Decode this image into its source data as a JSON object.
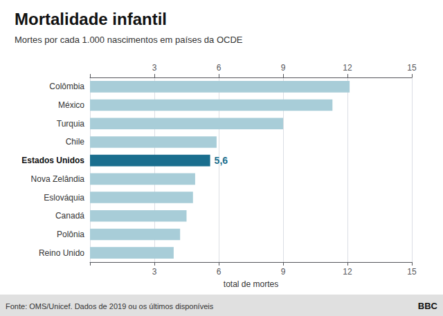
{
  "chart_data": {
    "type": "bar",
    "orientation": "horizontal",
    "title": "Mortalidade infantil",
    "subtitle": "Mortes por cada 1.000 nascimentos em países da OCDE",
    "categories": [
      "Colômbia",
      "México",
      "Turquia",
      "Chile",
      "Estados Unidos",
      "Nova Zelândia",
      "Eslováquia",
      "Canadá",
      "Polônia",
      "Reino Unido"
    ],
    "values": [
      12.1,
      11.3,
      9.0,
      5.9,
      5.6,
      4.9,
      4.8,
      4.5,
      4.2,
      3.9
    ],
    "value_labels": [
      null,
      null,
      null,
      null,
      "5,6",
      null,
      null,
      null,
      null,
      null
    ],
    "colors": [
      "#a8cdd8",
      "#a8cdd8",
      "#a8cdd8",
      "#a8cdd8",
      "#1a6e8e",
      "#a8cdd8",
      "#a8cdd8",
      "#a8cdd8",
      "#a8cdd8",
      "#a8cdd8"
    ],
    "xlabel": "total de mortes",
    "xlim": [
      0,
      15
    ],
    "xticks": [
      {
        "value": 0,
        "label": null
      },
      3,
      6,
      9,
      12,
      15
    ],
    "grid": true,
    "footnote": "Fonte: OMS/Unicef. Dados de 2019 ou os últimos disponíveis",
    "credit": "BBC"
  }
}
